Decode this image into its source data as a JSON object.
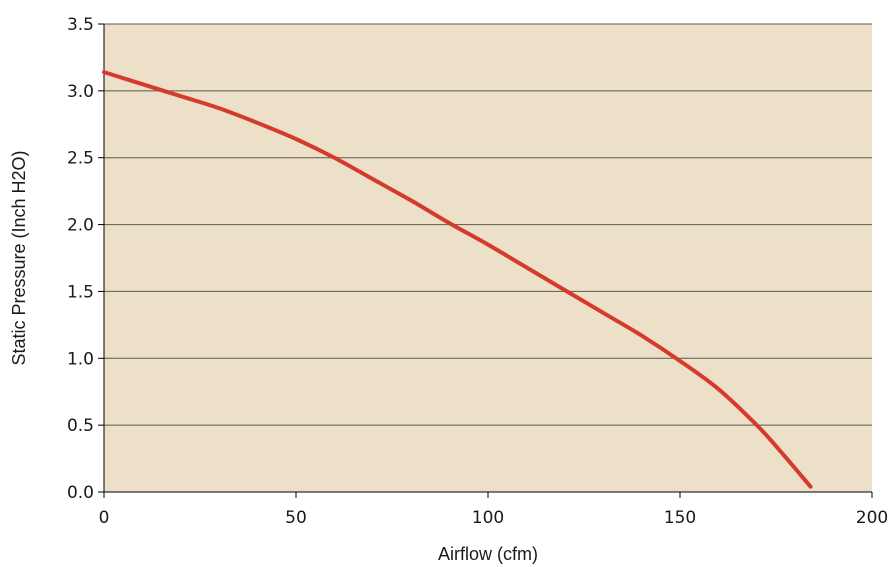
{
  "colors": {
    "plot_background": "#ede0c8",
    "gridline": "#5a5a4a",
    "axis": "#000000",
    "series": "#d63a2c"
  },
  "chart_data": {
    "type": "line",
    "title": "",
    "xlabel": "Airflow (cfm)",
    "ylabel": "Static Pressure (Inch H2O)",
    "xlim": [
      0,
      200
    ],
    "ylim": [
      0,
      3.5
    ],
    "x_ticks": [
      0,
      50,
      100,
      150,
      200
    ],
    "x_tick_labels": [
      "0",
      "50",
      "100",
      "150",
      "200"
    ],
    "y_ticks": [
      0,
      0.5,
      1,
      1.5,
      2,
      2.5,
      3,
      3.5
    ],
    "y_tick_labels": [
      "0.0",
      "0.5",
      "1.0",
      "1.5",
      "2.0",
      "2.5",
      "3.0",
      "3.5"
    ],
    "grid": "horizontal",
    "legend": "none",
    "series": [
      {
        "x": [
          0,
          10,
          20,
          30,
          40,
          50,
          60,
          70,
          80,
          90,
          100,
          110,
          120,
          130,
          140,
          150,
          160,
          170,
          176,
          184
        ],
        "y": [
          3.14,
          3.05,
          2.96,
          2.87,
          2.76,
          2.64,
          2.5,
          2.34,
          2.18,
          2.01,
          1.85,
          1.68,
          1.51,
          1.34,
          1.17,
          0.98,
          0.77,
          0.5,
          0.31,
          0.04
        ]
      }
    ]
  }
}
